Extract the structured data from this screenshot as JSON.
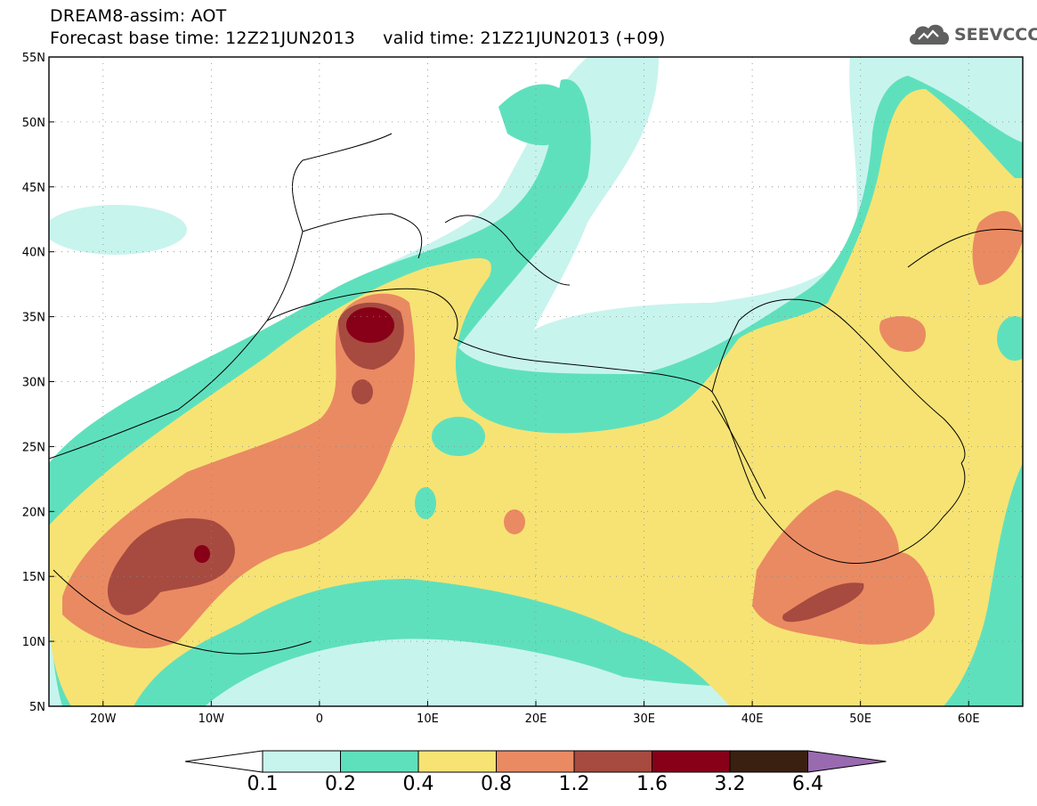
{
  "header": {
    "line1": "DREAM8-assim: AOT",
    "line2": "Forecast base time: 12Z21JUN2013     valid time: 21Z21JUN2013 (+09)"
  },
  "logo": {
    "text": "SEEVCCC",
    "icon": "cloud-icon"
  },
  "map": {
    "lon_range": [
      -25,
      65
    ],
    "lat_range": [
      5,
      55
    ],
    "lat_ticks": [
      "55N",
      "50N",
      "45N",
      "40N",
      "35N",
      "30N",
      "25N",
      "20N",
      "15N",
      "10N",
      "5N"
    ],
    "lon_ticks": [
      "20W",
      "10W",
      "0",
      "10E",
      "20E",
      "30E",
      "40E",
      "50E",
      "60E"
    ],
    "grid": "dotted"
  },
  "legend": {
    "labels": [
      "0.1",
      "0.2",
      "0.4",
      "0.8",
      "1.2",
      "1.6",
      "3.2",
      "6.4"
    ],
    "colors": {
      "below": "#ffffff",
      "c0_1": "#c8f4ee",
      "c0_2": "#5fe0bd",
      "c0_4": "#f6e374",
      "c0_8": "#ea8a62",
      "c1_2": "#a74a40",
      "c1_6": "#880018",
      "c3_2": "#3a2010",
      "above": "#9a6ab0"
    }
  }
}
